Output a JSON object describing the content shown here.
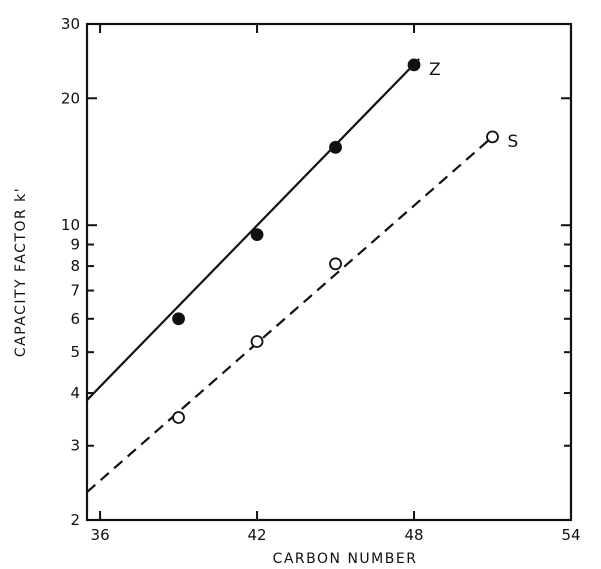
{
  "chart_data": {
    "type": "scatter",
    "title": "",
    "xlabel": "CARBON NUMBER",
    "ylabel": "CAPACITY FACTOR k'",
    "xlim": [
      35.5,
      54
    ],
    "ylim": [
      2,
      30
    ],
    "yscale": "log",
    "grid": false,
    "x_ticks": [
      36,
      42,
      48,
      54
    ],
    "y_ticks": [
      2,
      3,
      4,
      5,
      6,
      7,
      8,
      9,
      10,
      20,
      30
    ],
    "series": [
      {
        "name": "Z",
        "marker": "filled-circle",
        "line": "solid",
        "x": [
          39,
          42,
          45,
          48
        ],
        "y": [
          6.0,
          9.5,
          15.3,
          24.0
        ],
        "fit_line": {
          "x": [
            35.5,
            48.2
          ],
          "y": [
            3.85,
            24.8
          ]
        }
      },
      {
        "name": "S",
        "marker": "open-circle",
        "line": "dashed",
        "x": [
          39,
          42,
          45,
          51
        ],
        "y": [
          3.5,
          5.3,
          8.1,
          16.2
        ],
        "fit_line": {
          "x": [
            35.5,
            51
          ],
          "y": [
            2.33,
            16.2
          ]
        }
      }
    ]
  }
}
